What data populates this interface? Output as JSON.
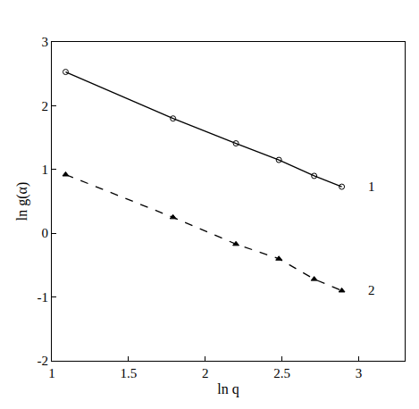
{
  "chart_data": {
    "type": "line",
    "x_label": "ln q",
    "y_label": "ln g(α)",
    "series": [
      {
        "name": "1",
        "color": "#000000",
        "marker": "circle-open",
        "line_style": "solid",
        "x": [
          1.09,
          1.79,
          2.2,
          2.48,
          2.71,
          2.89
        ],
        "values": [
          2.53,
          1.8,
          1.41,
          1.15,
          0.9,
          0.73
        ]
      },
      {
        "name": "2",
        "color": "#000000",
        "marker": "triangle-up",
        "line_style": "dash",
        "x": [
          1.09,
          1.79,
          2.2,
          2.48,
          2.71,
          2.89
        ],
        "values": [
          0.92,
          0.25,
          -0.17,
          -0.4,
          -0.72,
          -0.9
        ]
      }
    ],
    "xlim": [
      1,
      3.3
    ],
    "xticks": [
      1,
      1.5,
      2,
      2.5,
      3
    ],
    "ylim": [
      -2,
      3
    ],
    "yticks": [
      -2,
      -1,
      0,
      1,
      2,
      3
    ],
    "grid": false
  }
}
